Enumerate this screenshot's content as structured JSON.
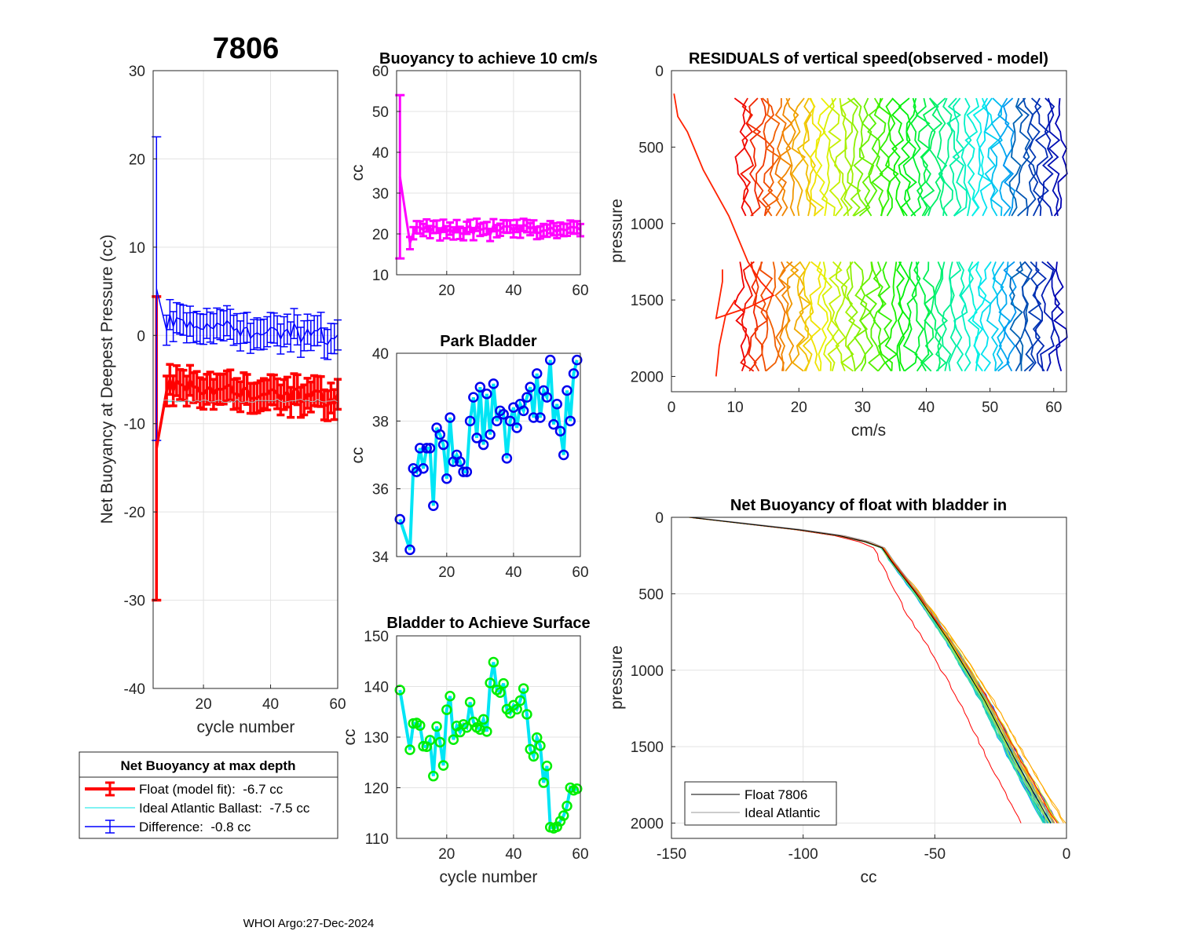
{
  "figure": {
    "float_id": "7806",
    "footer": "WHOI Argo:27-Dec-2024"
  },
  "colors": {
    "float": "#ff0000",
    "ideal": "#00e5e5",
    "difference": "#0000ff",
    "buoyancy": "#ff00ff",
    "park_marker": "#0000ee",
    "park_line": "#00e5f5",
    "surface_marker": "#00ee00",
    "surface_line": "#00e5f5"
  },
  "chart_data": [
    {
      "id": "net_buoyancy",
      "type": "line",
      "title": "7806",
      "xlabel": "cycle number",
      "ylabel": "Net Buoyancy at Deepest Pressure (cc)",
      "xlim": [
        5,
        60
      ],
      "ylim": [
        -40,
        30
      ],
      "xticks": [
        20,
        40,
        60
      ],
      "yticks": [
        -40,
        -30,
        -20,
        -10,
        0,
        10,
        20,
        30
      ],
      "grid": true,
      "series": [
        {
          "name": "Float (model fit):  -6.7 cc",
          "style": "errorbar",
          "x": [
            6
          ],
          "y": [
            -12.8
          ],
          "yerr_low": [
            17.2
          ],
          "yerr_high": [
            17.2
          ]
        },
        {
          "name": "Ideal Atlantic Ballast:  -7.5 cc",
          "style": "line",
          "value": -7.5
        },
        {
          "name": "Difference:  -0.8 cc",
          "style": "errorbar",
          "x": [
            6
          ],
          "y": [
            5.3
          ],
          "yerr_low": [
            17.2
          ],
          "yerr_high": [
            17.2
          ]
        }
      ],
      "legend": {
        "title": "Net Buoyancy at max depth",
        "placement": "below",
        "entries": [
          "Float (model fit):  -6.7 cc",
          "Ideal Atlantic Ballast:  -7.5 cc",
          "Difference:  -0.8 cc"
        ]
      }
    },
    {
      "id": "buoyancy_10cms",
      "type": "line",
      "title": "Buoyancy to achieve 10 cm/s",
      "xlabel": "",
      "ylabel": "cc",
      "xlim": [
        5,
        60
      ],
      "ylim": [
        10,
        60
      ],
      "xticks": [
        20,
        40,
        60
      ],
      "yticks": [
        10,
        20,
        30,
        40,
        50,
        60
      ],
      "grid": true,
      "first_point": {
        "x": 6,
        "y": 34,
        "yerr": 20
      },
      "typical_value": 21,
      "error_half_width": 1.5
    },
    {
      "id": "park_bladder",
      "type": "line",
      "title": "Park Bladder",
      "xlabel": "",
      "ylabel": "cc",
      "xlim": [
        5,
        60
      ],
      "ylim": [
        34,
        40
      ],
      "xticks": [
        20,
        40,
        60
      ],
      "yticks": [
        34,
        36,
        38,
        40
      ],
      "grid": true,
      "x": [
        6,
        9,
        10,
        11,
        12,
        13,
        14,
        15,
        16,
        17,
        18,
        19,
        20,
        21,
        22,
        23,
        24,
        25,
        26,
        27,
        28,
        29,
        30,
        31,
        32,
        33,
        34,
        35,
        36,
        37,
        38,
        39,
        40,
        41,
        42,
        43,
        44,
        45,
        46,
        47,
        48,
        49,
        50,
        51,
        52,
        53,
        54,
        55,
        56,
        57,
        58,
        59
      ],
      "values": [
        35.1,
        34.2,
        36.6,
        36.5,
        37.2,
        36.6,
        37.2,
        37.2,
        35.5,
        37.8,
        37.6,
        37.3,
        36.3,
        38.1,
        36.8,
        37.0,
        36.8,
        36.5,
        36.5,
        38.0,
        38.7,
        37.5,
        39.0,
        37.3,
        38.8,
        37.6,
        39.1,
        38.0,
        38.3,
        38.2,
        36.9,
        38.0,
        38.4,
        37.8,
        38.5,
        38.3,
        38.7,
        39.0,
        38.1,
        39.4,
        38.1,
        38.9,
        38.7,
        39.8,
        37.9,
        38.5,
        37.7,
        37.0,
        38.9,
        38.0,
        39.4,
        39.8
      ]
    },
    {
      "id": "bladder_surface",
      "type": "line",
      "title": "Bladder to Achieve Surface",
      "xlabel": "cycle number",
      "ylabel": "cc",
      "xlim": [
        5,
        60
      ],
      "ylim": [
        110,
        150
      ],
      "xticks": [
        20,
        40,
        60
      ],
      "yticks": [
        110,
        120,
        130,
        140,
        150
      ],
      "grid": true,
      "x": [
        6,
        9,
        10,
        11,
        12,
        13,
        14,
        15,
        16,
        17,
        18,
        19,
        20,
        21,
        22,
        23,
        24,
        25,
        26,
        27,
        28,
        29,
        30,
        31,
        32,
        33,
        34,
        35,
        36,
        37,
        38,
        39,
        40,
        41,
        42,
        43,
        44,
        45,
        46,
        47,
        48,
        49,
        50,
        51,
        52,
        53,
        54,
        55,
        56,
        57,
        58,
        59
      ],
      "values": [
        139.3,
        127.5,
        132.7,
        132.8,
        132.3,
        128.2,
        128.1,
        129.4,
        122.3,
        132.1,
        129.0,
        124.4,
        135.4,
        138.1,
        129.5,
        132.2,
        131.0,
        132.5,
        131.9,
        136.9,
        133.0,
        131.9,
        131.5,
        133.5,
        131.1,
        140.7,
        144.8,
        139.3,
        138.8,
        140.6,
        135.5,
        134.7,
        136.3,
        135.5,
        137.2,
        139.6,
        134.5,
        127.6,
        126.2,
        129.9,
        128.3,
        121.0,
        124.3,
        112.2,
        112.0,
        112.3,
        113.4,
        114.5,
        116.4,
        120.0,
        119.5,
        119.8
      ]
    },
    {
      "id": "residuals",
      "type": "line",
      "title": "RESIDUALS of vertical speed(observed - model)",
      "xlabel": "cm/s",
      "ylabel": "pressure",
      "xlim": [
        0,
        62
      ],
      "ylim": [
        2100,
        0
      ],
      "xticks": [
        0,
        10,
        20,
        30,
        40,
        50,
        60
      ],
      "yticks": [
        0,
        500,
        1000,
        1500,
        2000
      ],
      "grid": false,
      "profile_count": 52,
      "offset_range": [
        11,
        61
      ],
      "upper_range": [
        180,
        1000
      ],
      "lower_range": [
        1250,
        2000
      ]
    },
    {
      "id": "net_buoyancy_bladder_in",
      "type": "line",
      "title": "Net Buoyancy of float with bladder in",
      "xlabel": "cc",
      "ylabel": "pressure",
      "xlim": [
        -150,
        0
      ],
      "ylim": [
        2100,
        0
      ],
      "xticks": [
        -150,
        -100,
        -50,
        0
      ],
      "yticks": [
        0,
        500,
        1000,
        1500,
        2000
      ],
      "grid": true,
      "series": [
        {
          "name": "Float 7806",
          "pressure": [
            0,
            50,
            100,
            150,
            200,
            300,
            500,
            800,
            1200,
            1600,
            2000
          ],
          "cc": [
            -143,
            -118,
            -92,
            -78,
            -70,
            -66,
            -57,
            -45,
            -31,
            -19,
            -6
          ]
        },
        {
          "name": "Ideal Atlantic",
          "pressure": [
            0,
            50,
            100,
            150,
            200,
            300,
            500,
            800,
            1200,
            1600,
            2000
          ],
          "cc": [
            -142,
            -116,
            -90,
            -76,
            -69,
            -65,
            -56,
            -44,
            -30,
            -18,
            -5
          ]
        }
      ],
      "legend": {
        "placement": "bottom-left",
        "entries": [
          "Float 7806",
          "Ideal Atlantic"
        ]
      }
    }
  ]
}
